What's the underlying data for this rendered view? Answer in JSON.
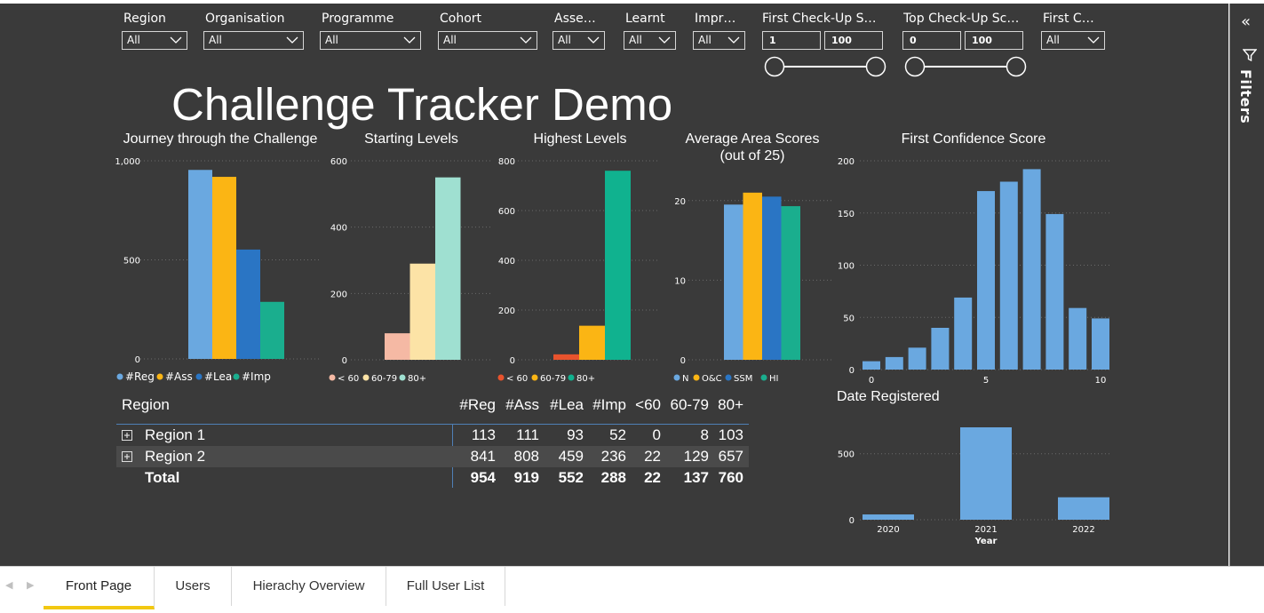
{
  "slicers": [
    {
      "label": "Region",
      "value": "All"
    },
    {
      "label": "Organisation",
      "value": "All"
    },
    {
      "label": "Programme",
      "value": "All"
    },
    {
      "label": "Cohort",
      "value": "All"
    },
    {
      "label": "Asse…",
      "value": "All"
    },
    {
      "label": "Learnt",
      "value": "All"
    },
    {
      "label": "Impr…",
      "value": "All"
    },
    {
      "label": "First C…",
      "value": "All"
    }
  ],
  "range_slicers": [
    {
      "label": "First Check-Up S…",
      "min": "1",
      "max": "100"
    },
    {
      "label": "Top Check-Up Sc…",
      "min": "0",
      "max": "100"
    }
  ],
  "page_title": "Challenge Tracker Demo",
  "colors": {
    "blue": "#6aa8e0",
    "gold": "#fbb514",
    "darkblue": "#2a75c4",
    "teal": "#1aae8e",
    "peach": "#f5b9a4",
    "cream": "#fce3a6",
    "mint": "#9fe0d1",
    "red": "#e8532d",
    "green": "#10b28f"
  },
  "chart_data": [
    {
      "type": "bar",
      "title": "Journey through the Challenge",
      "series": [
        {
          "name": "#Reg",
          "values": [
            954
          ]
        },
        {
          "name": "#Ass",
          "values": [
            919
          ]
        },
        {
          "name": "#Lea",
          "values": [
            552
          ]
        },
        {
          "name": "#Imp",
          "values": [
            288
          ]
        }
      ],
      "ylim": [
        0,
        1000
      ],
      "yticks": [
        "0",
        "500",
        "1,000"
      ],
      "legend": [
        "#Reg",
        "#Ass",
        "#Lea",
        "#Imp"
      ]
    },
    {
      "type": "bar",
      "title": "Starting Levels",
      "series": [
        {
          "name": "< 60",
          "values": [
            80
          ]
        },
        {
          "name": "60-79",
          "values": [
            290
          ]
        },
        {
          "name": "80+",
          "values": [
            550
          ]
        }
      ],
      "ylim": [
        0,
        600
      ],
      "yticks": [
        "0",
        "200",
        "400",
        "600"
      ],
      "legend": [
        "< 60",
        "60-79",
        "80+"
      ]
    },
    {
      "type": "bar",
      "title": "Highest Levels",
      "series": [
        {
          "name": "< 60",
          "values": [
            22
          ]
        },
        {
          "name": "60-79",
          "values": [
            137
          ]
        },
        {
          "name": "80+",
          "values": [
            760
          ]
        }
      ],
      "ylim": [
        0,
        800
      ],
      "yticks": [
        "0",
        "200",
        "400",
        "600",
        "800"
      ],
      "legend": [
        "< 60",
        "60-79",
        "80+"
      ]
    },
    {
      "type": "bar",
      "title": "Average Area Scores (out of 25)",
      "title_lines": [
        "Average Area Scores",
        "(out of 25)"
      ],
      "series": [
        {
          "name": "N",
          "values": [
            19.5
          ]
        },
        {
          "name": "O&C",
          "values": [
            21
          ]
        },
        {
          "name": "SSM",
          "values": [
            20.5
          ]
        },
        {
          "name": "HI",
          "values": [
            19.3
          ]
        }
      ],
      "ylim": [
        0,
        25
      ],
      "yticks": [
        "0",
        "10",
        "20"
      ],
      "legend": [
        "N",
        "O&C",
        "SSM",
        "HI"
      ]
    },
    {
      "type": "bar",
      "title": "First Confidence Score",
      "x": [
        0,
        1,
        2,
        3,
        4,
        5,
        6,
        7,
        8,
        9,
        10
      ],
      "values": [
        8,
        12,
        21,
        40,
        69,
        171,
        180,
        192,
        149,
        59,
        49
      ],
      "ylim": [
        0,
        200
      ],
      "yticks": [
        "0",
        "50",
        "100",
        "150",
        "200"
      ],
      "xticks": [
        "0",
        "5",
        "10"
      ]
    },
    {
      "type": "bar",
      "title": "Date Registered",
      "categories": [
        "2020",
        "2021",
        "2022"
      ],
      "values": [
        40,
        700,
        170
      ],
      "xlabel": "Year",
      "ylim": [
        0,
        700
      ],
      "yticks": [
        "0",
        "500"
      ]
    }
  ],
  "table": {
    "headers": [
      "Region",
      "#Reg",
      "#Ass",
      "#Lea",
      "#Imp",
      "<60",
      "60-79",
      "80+"
    ],
    "rows": [
      {
        "label": "Region 1",
        "values": [
          "113",
          "111",
          "93",
          "52",
          "0",
          "8",
          "103"
        ]
      },
      {
        "label": "Region 2",
        "values": [
          "841",
          "808",
          "459",
          "236",
          "22",
          "129",
          "657"
        ]
      }
    ],
    "total": {
      "label": "Total",
      "values": [
        "954",
        "919",
        "552",
        "288",
        "22",
        "137",
        "760"
      ]
    }
  },
  "filters_pane": {
    "label": "Filters"
  },
  "tabs": [
    "Front Page",
    "Users",
    "Hierachy Overview",
    "Full User List"
  ],
  "active_tab": "Front Page"
}
